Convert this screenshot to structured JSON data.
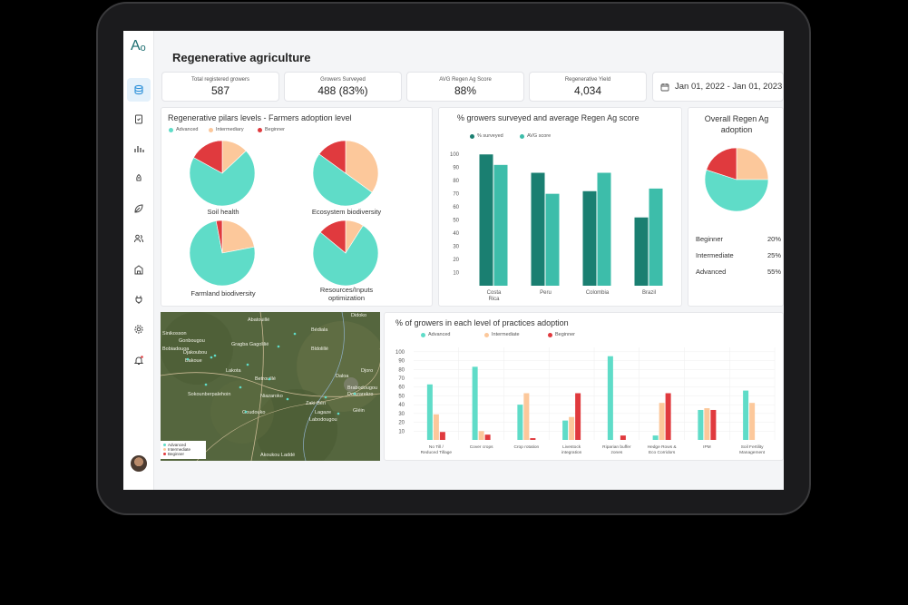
{
  "app": {
    "title": "Regenerative agriculture",
    "logo": "Aₒ"
  },
  "sidebar": {
    "items": [
      "database-icon",
      "clipboard-icon",
      "bar-chart-icon",
      "rocket-icon",
      "leaf-icon",
      "users-icon",
      "building-icon",
      "plug-icon",
      "settings-icon",
      "bell-icon"
    ]
  },
  "kpis": [
    {
      "label": "Total registered growers",
      "value": "587"
    },
    {
      "label": "Growers Surveyed",
      "value": "488 (83%)"
    },
    {
      "label": "AVG Regen Ag Score",
      "value": "88%"
    },
    {
      "label": "Regenerative Yield",
      "value": "4,034"
    }
  ],
  "date_range": "Jan 01, 2022 - Jan 01, 2023",
  "colors": {
    "advanced": "#5fdcc8",
    "intermediary": "#fcc89b",
    "beginner": "#e03a3e",
    "surveyed": "#1a7f71",
    "avg": "#3dbdaa"
  },
  "pilars": {
    "title": "Regenerative pilars levels - Farmers adoption level",
    "legend": [
      "Advanced",
      "Intermediary",
      "Beginner"
    ],
    "pies": [
      {
        "label": "Soil health",
        "advanced": 0.7,
        "intermediary": 0.13,
        "beginner": 0.17
      },
      {
        "label": "Ecosystem biodiversity",
        "advanced": 0.5,
        "intermediary": 0.35,
        "beginner": 0.15
      },
      {
        "label": "Farmland biodiversity",
        "advanced": 0.75,
        "intermediary": 0.22,
        "beginner": 0.03
      },
      {
        "label": "Resources/Inputs\noptimization",
        "advanced": 0.77,
        "intermediary": 0.09,
        "beginner": 0.14
      }
    ]
  },
  "survey_chart": {
    "title": "% growers surveyed and average Regen Ag score",
    "legend": [
      "% surveyed",
      "AVG score"
    ]
  },
  "adoption": {
    "title": "Overall Regen Ag\nadoption",
    "rows": [
      {
        "label": "Beginner",
        "value": "20%"
      },
      {
        "label": "Intermediate",
        "value": "25%"
      },
      {
        "label": "Advanced",
        "value": "55%"
      }
    ]
  },
  "map": {
    "places": [
      "Abatouillé",
      "Didoko",
      "Sinikosson",
      "Gragba Gagolilié",
      "Bédiala",
      "Gonbougou",
      "Bobiadouoa",
      "Djakoubou",
      "Bldolillé",
      "Bakoue",
      "Lakota",
      "Betrouillé",
      "Sokounberpalehoin",
      "Niazaroko",
      "Daloa",
      "Djoro",
      "Zaki-Béri",
      "Brabodougou",
      "Douzarekro",
      "Goudouko",
      "Lagaze",
      "Gléin",
      "Labodougou",
      "Akoukou Laddé"
    ],
    "legend": [
      "Advanced",
      "Intermediate",
      "Beginner"
    ]
  },
  "practices": {
    "title": "% of growers in each level of practices adoption",
    "legend": [
      "Advanced",
      "Intermediate",
      "Beginner"
    ]
  },
  "chart_data": [
    {
      "type": "pie",
      "title": "Overall Regen Ag adoption",
      "categories": [
        "Beginner",
        "Intermediate",
        "Advanced"
      ],
      "values": [
        20,
        25,
        55
      ]
    },
    {
      "type": "bar",
      "title": "% growers surveyed and average Regen Ag score",
      "categories": [
        "Costa\nRica",
        "Peru",
        "Colombia",
        "Brazil"
      ],
      "series": [
        {
          "name": "% surveyed",
          "values": [
            100,
            86,
            72,
            52
          ]
        },
        {
          "name": "AVG score",
          "values": [
            92,
            70,
            86,
            74
          ]
        }
      ],
      "yticks": [
        10,
        20,
        30,
        40,
        50,
        60,
        70,
        80,
        90,
        100
      ],
      "ylim": [
        0,
        105
      ]
    },
    {
      "type": "bar",
      "title": "% of growers in each level of practices adoption",
      "categories": [
        "No Till /\nReduced Tillage",
        "Cover crops",
        "Crop rotation",
        "Livestock\nintegration",
        "Riparian buffer\nzones",
        "Hedge Rows &\nEco Corridors",
        "IPM",
        "Soil Fertility\nManagement"
      ],
      "series": [
        {
          "name": "Advanced",
          "values": [
            63,
            83,
            40,
            22,
            95,
            5,
            34,
            56
          ]
        },
        {
          "name": "Intermediate",
          "values": [
            29,
            10,
            53,
            26,
            0,
            42,
            36,
            42
          ]
        },
        {
          "name": "Beginner",
          "values": [
            9,
            6,
            2,
            53,
            5,
            53,
            34,
            0
          ]
        }
      ],
      "yticks": [
        10,
        20,
        30,
        40,
        50,
        60,
        70,
        80,
        90,
        100
      ],
      "ylim": [
        0,
        105
      ]
    }
  ]
}
